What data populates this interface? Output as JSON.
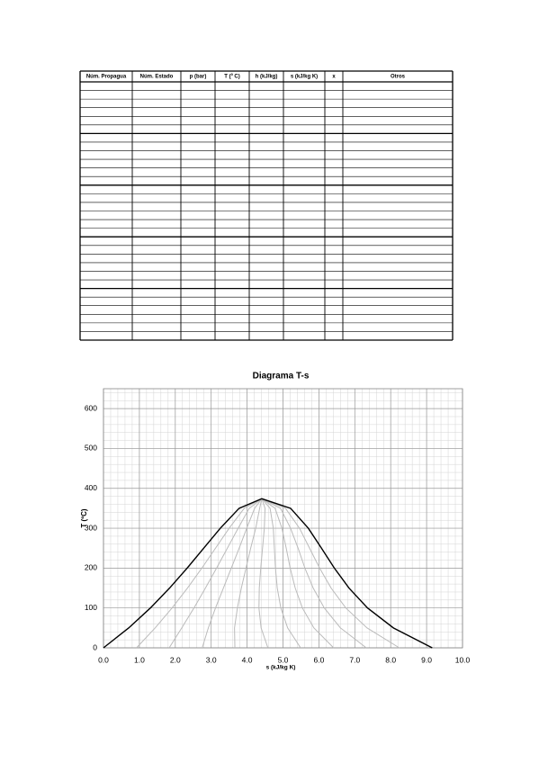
{
  "table": {
    "headers": [
      "Núm. Propagua",
      "Núm. Estado",
      "p (bar)",
      "T (º C)",
      "h (kJ/kg)",
      "s (kJ/kg K)",
      "x",
      "Otros"
    ]
  },
  "chart_data": {
    "type": "line",
    "title": "Diagrama T-s",
    "x_label": "s (kJ/kg K)",
    "y_label": "T (ºC)",
    "xlim": [
      0,
      10
    ],
    "xticks": [
      {
        "value": 0,
        "label": "0.0"
      },
      {
        "value": 1,
        "label": "1.0"
      },
      {
        "value": 2,
        "label": "2.0"
      },
      {
        "value": 3,
        "label": "3.0"
      },
      {
        "value": 4,
        "label": "4.0"
      },
      {
        "value": 5,
        "label": "5.0"
      },
      {
        "value": 6,
        "label": "6.0"
      },
      {
        "value": 7,
        "label": "7.0"
      },
      {
        "value": 8,
        "label": "8.0"
      },
      {
        "value": 9,
        "label": "9.0"
      },
      {
        "value": 10,
        "label": "10.0"
      }
    ],
    "ylim": [
      0,
      650
    ],
    "yticks": [
      0,
      100,
      200,
      300,
      400,
      500,
      600
    ],
    "grid": true,
    "minor_grid_step": {
      "x": 0.2,
      "y": 20
    },
    "series": [
      {
        "color": "#000000",
        "x": [
          0,
          0.704,
          1.307,
          1.842,
          2.331,
          2.793,
          3.255,
          3.778,
          4.41,
          5.212,
          5.705,
          6.072,
          6.43,
          6.838,
          7.355,
          8.075,
          9.156
        ],
        "values": [
          0,
          50,
          100,
          150,
          200,
          250,
          300,
          350,
          374,
          350,
          300,
          250,
          200,
          150,
          100,
          50,
          0
        ]
      },
      {
        "color": "#bbbbbb",
        "x": [
          0.92,
          1.44,
          1.91,
          2.34,
          2.74,
          3.12,
          3.5,
          3.92,
          4.41
        ],
        "values": [
          0,
          50,
          100,
          150,
          200,
          250,
          300,
          350,
          374
        ]
      },
      {
        "color": "#bbbbbb",
        "x": [
          1.83,
          2.18,
          2.52,
          2.84,
          3.15,
          3.45,
          3.75,
          4.06,
          4.41
        ],
        "values": [
          0,
          50,
          100,
          150,
          200,
          250,
          300,
          350,
          374
        ]
      },
      {
        "color": "#bbbbbb",
        "x": [
          2.75,
          2.92,
          3.12,
          3.34,
          3.56,
          3.78,
          3.99,
          4.21,
          4.41
        ],
        "values": [
          0,
          50,
          100,
          150,
          200,
          250,
          300,
          350,
          374
        ]
      },
      {
        "color": "#bbbbbb",
        "x": [
          3.66,
          3.65,
          3.73,
          3.84,
          3.97,
          4.1,
          4.24,
          4.35,
          4.41
        ],
        "values": [
          0,
          50,
          100,
          150,
          200,
          250,
          300,
          350,
          374
        ]
      },
      {
        "color": "#bbbbbb",
        "x": [
          4.58,
          4.39,
          4.33,
          4.34,
          4.38,
          4.43,
          4.48,
          4.5,
          4.41
        ],
        "values": [
          0,
          50,
          100,
          150,
          200,
          250,
          300,
          350,
          374
        ]
      },
      {
        "color": "#bbbbbb",
        "x": [
          5.49,
          5.13,
          4.94,
          4.84,
          4.79,
          4.76,
          4.73,
          4.64,
          4.41
        ],
        "values": [
          0,
          50,
          100,
          150,
          200,
          250,
          300,
          350,
          374
        ]
      },
      {
        "color": "#bbbbbb",
        "x": [
          6.41,
          5.86,
          5.54,
          5.34,
          5.2,
          5.09,
          4.97,
          4.78,
          4.41
        ],
        "values": [
          0,
          50,
          100,
          150,
          200,
          250,
          300,
          350,
          374
        ]
      },
      {
        "color": "#bbbbbb",
        "x": [
          7.32,
          6.6,
          6.15,
          5.84,
          5.61,
          5.42,
          5.21,
          4.93,
          4.41
        ],
        "values": [
          0,
          50,
          100,
          150,
          200,
          250,
          300,
          350,
          374
        ]
      },
      {
        "color": "#bbbbbb",
        "x": [
          8.24,
          7.34,
          6.75,
          6.34,
          6.02,
          5.74,
          5.46,
          5.07,
          4.41
        ],
        "values": [
          0,
          50,
          100,
          150,
          200,
          250,
          300,
          350,
          374
        ]
      }
    ]
  }
}
